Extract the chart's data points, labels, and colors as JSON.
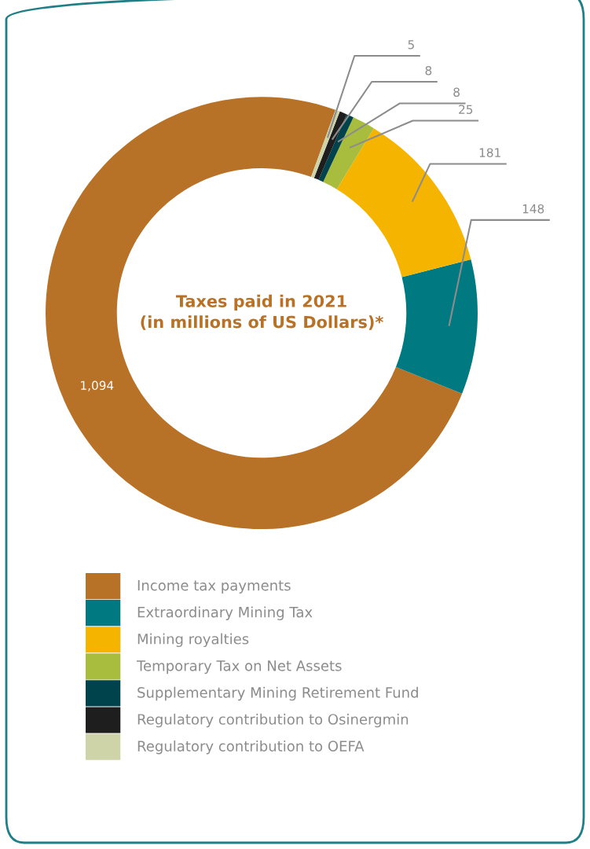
{
  "chart_data": {
    "type": "donut",
    "title": "Taxes paid in 2021\n(in millions of US Dollars)*",
    "categories": [
      "Income tax payments",
      "Extraordinary Mining Tax",
      "Mining royalties",
      "Temporary Tax on Net Assets",
      "Supplementary Mining Retirement Fund",
      "Regulatory contribution to Osinergmin",
      "Regulatory contribution to OEFA"
    ],
    "values": [
      1094,
      148,
      181,
      25,
      8,
      8,
      5
    ],
    "value_labels": [
      "1,094",
      "148",
      "181",
      "25",
      "8",
      "8",
      "5"
    ],
    "colors": [
      "#b87228",
      "#007a80",
      "#f5b400",
      "#a8bd3e",
      "#00434c",
      "#1e1e1e",
      "#cfd3a8"
    ],
    "legend": "bottom"
  }
}
